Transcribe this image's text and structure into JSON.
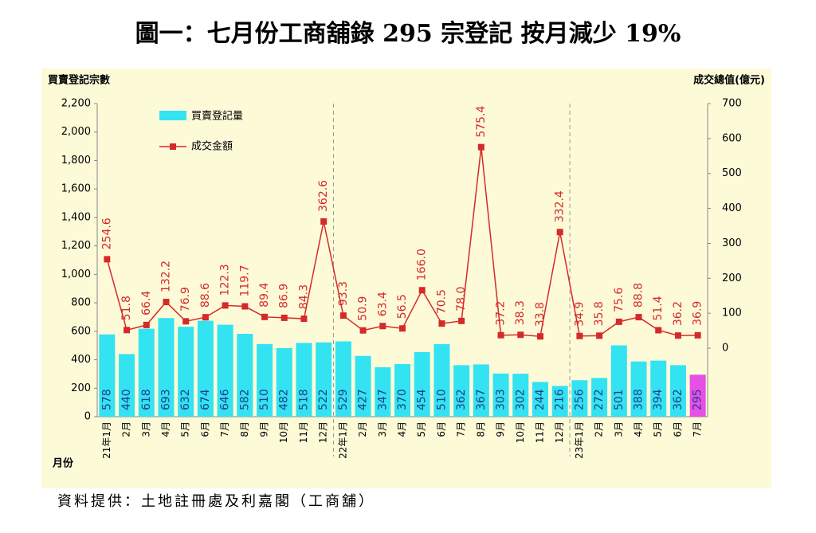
{
  "chart_data": {
    "type": "bar-line",
    "title": "圖一：七月份工商舖錄 295 宗登記 按月減少 19%",
    "y_label": "買賣登記宗數",
    "y2_label": "成交總值(億元)",
    "x_label": "月份",
    "source": "資料提供：土地註冊處及利嘉閣（工商舖）",
    "categories": [
      "21年1月",
      "2月",
      "3月",
      "4月",
      "5月",
      "6月",
      "7月",
      "8月",
      "9月",
      "10月",
      "11月",
      "12月",
      "22年1月",
      "2月",
      "3月",
      "4月",
      "5月",
      "6月",
      "7月",
      "8月",
      "9月",
      "10月",
      "11月",
      "12月",
      "23年1月",
      "2月",
      "3月",
      "4月",
      "5月",
      "6月",
      "7月"
    ],
    "series": [
      {
        "name": "買賣登記量",
        "color": "#33e3f2",
        "colors": [
          "#33e3f2",
          "#33e3f2",
          "#33e3f2",
          "#33e3f2",
          "#33e3f2",
          "#33e3f2",
          "#33e3f2",
          "#33e3f2",
          "#33e3f2",
          "#33e3f2",
          "#33e3f2",
          "#33e3f2",
          "#33e3f2",
          "#33e3f2",
          "#33e3f2",
          "#33e3f2",
          "#33e3f2",
          "#33e3f2",
          "#33e3f2",
          "#33e3f2",
          "#33e3f2",
          "#33e3f2",
          "#33e3f2",
          "#33e3f2",
          "#33e3f2",
          "#33e3f2",
          "#33e3f2",
          "#33e3f2",
          "#33e3f2",
          "#33e3f2",
          "#e650e6"
        ],
        "values": [
          578,
          440,
          618,
          693,
          632,
          674,
          646,
          582,
          510,
          482,
          518,
          522,
          529,
          427,
          347,
          370,
          454,
          510,
          362,
          367,
          303,
          302,
          244,
          216,
          256,
          272,
          501,
          388,
          394,
          362,
          295
        ]
      },
      {
        "name": "成交金額",
        "color": "#d42a2a",
        "axis": "y2",
        "values": [
          254.6,
          51.8,
          66.4,
          132.2,
          76.9,
          88.6,
          122.3,
          119.7,
          89.4,
          86.9,
          84.3,
          362.6,
          93.3,
          50.9,
          63.4,
          56.5,
          166.0,
          70.5,
          78.0,
          575.4,
          37.2,
          38.3,
          33.8,
          332.4,
          34.9,
          35.8,
          75.6,
          88.8,
          51.4,
          36.2,
          36.9
        ],
        "value_labels": [
          "254.6",
          "51.8",
          "66.4",
          "132.2",
          "76.9",
          "88.6",
          "122.3",
          "119.7",
          "89.4",
          "86.9",
          "84.3",
          "362.6",
          "93.3",
          "50.9",
          "63.4",
          "56.5",
          "166.0",
          "70.5",
          "78.0",
          "575.4",
          "37.2",
          "38.3",
          "33.8",
          "332.4",
          "34.9",
          "35.8",
          "75.6",
          "88.8",
          "51.4",
          "36.2",
          "36.9"
        ]
      }
    ],
    "ylim": [
      0,
      2200
    ],
    "yticks": [
      0,
      200,
      400,
      600,
      800,
      {
        "value": 1000,
        "label": "1,000"
      },
      {
        "value": 1200,
        "label": "1,200"
      },
      {
        "value": 1400,
        "label": "1,400"
      },
      {
        "value": 1600,
        "label": "1,600"
      },
      {
        "value": 1800,
        "label": "1,800"
      },
      {
        "value": 2000,
        "label": "2,000"
      },
      {
        "value": 2200,
        "label": "2,200"
      }
    ],
    "y2lim": [
      -196,
      700
    ],
    "y2ticks": [
      0,
      100,
      200,
      300,
      400,
      500,
      600,
      700
    ]
  }
}
